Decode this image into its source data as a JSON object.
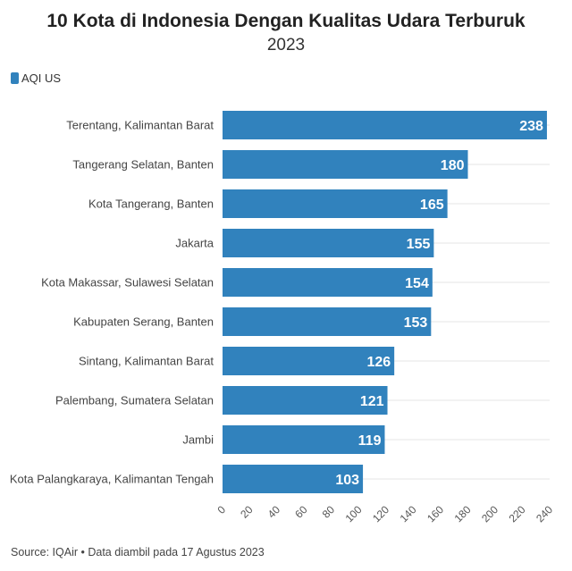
{
  "chart_data": {
    "type": "bar",
    "orientation": "horizontal",
    "title": "10 Kota di Indonesia Dengan Kualitas Udara Terburuk",
    "subtitle": "2023",
    "legend": {
      "label": "AQI US",
      "color": "#3182bd",
      "placement": "top-left"
    },
    "categories": [
      "Terentang, Kalimantan Barat",
      "Tangerang Selatan, Banten",
      "Kota Tangerang, Banten",
      "Jakarta",
      "Kota Makassar, Sulawesi Selatan",
      "Kabupaten Serang, Banten",
      "Sintang, Kalimantan Barat",
      "Palembang, Sumatera Selatan",
      "Jambi",
      "Kota Palangkaraya, Kalimantan Tengah"
    ],
    "series": [
      {
        "name": "AQI US",
        "values": [
          238,
          180,
          165,
          155,
          154,
          153,
          126,
          121,
          119,
          103
        ]
      }
    ],
    "xlim": [
      0,
      240
    ],
    "xticks": [
      "0",
      "20",
      "40",
      "60",
      "80",
      "100",
      "120",
      "140",
      "160",
      "180",
      "200",
      "220",
      "240"
    ],
    "grid": true,
    "bar_color": "#3182bd"
  },
  "footer": {
    "source": "Source: IQAir • Data diambil pada 17 Agustus 2023"
  }
}
